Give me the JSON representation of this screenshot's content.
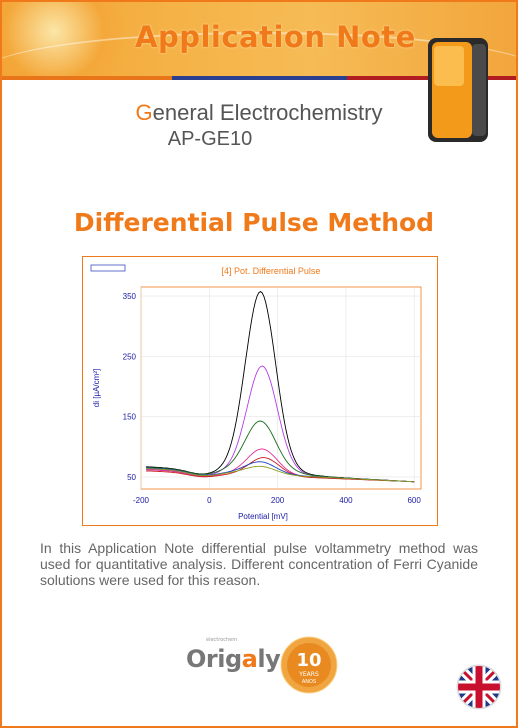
{
  "banner": {
    "title": "Application Note"
  },
  "header": {
    "category_first_letter": "G",
    "category_rest": "eneral Electrochemistry",
    "code": "AP-GE10"
  },
  "method_title": "Differential Pulse Method",
  "chart_data": {
    "type": "line",
    "title": "[4] Pot. Differential Pulse",
    "xlabel": "Potential [mV]",
    "ylabel": "di [µA/cm²]",
    "xlim": [
      -200,
      620
    ],
    "ylim": [
      30,
      365
    ],
    "xticks": [
      "-200",
      "0",
      "200",
      "400",
      "600"
    ],
    "yticks": [
      "50",
      "150",
      "250",
      "350"
    ],
    "grid": true,
    "series": [
      {
        "color": "#000000",
        "peak_x": 150,
        "peak_y": 348,
        "start_y": 67
      },
      {
        "color": "#b23de6",
        "peak_x": 155,
        "peak_y": 227,
        "start_y": 63
      },
      {
        "color": "#1a6b1a",
        "peak_x": 150,
        "peak_y": 134,
        "start_y": 66
      },
      {
        "color": "#e0309a",
        "peak_x": 155,
        "peak_y": 98,
        "start_y": 62
      },
      {
        "color": "#c92020",
        "peak_x": 160,
        "peak_y": 85,
        "start_y": 60
      },
      {
        "color": "#1f3fbf",
        "peak_x": 150,
        "peak_y": 75,
        "start_y": 65
      },
      {
        "color": "#8aa020",
        "peak_x": 150,
        "peak_y": 68,
        "start_y": 64
      }
    ]
  },
  "description": "In this Application Note differential pulse voltammetry method was used for quantitative analysis. Different concentration of Ferri Cyanide solutions were used for this reason.",
  "footer": {
    "logo_prefix": "Orig",
    "logo_highlight": "a",
    "logo_suffix": "lys",
    "logo_tag": "electrochem",
    "seal_number": "10",
    "seal_text": "YEARS",
    "seal_sub": "ANOS"
  }
}
